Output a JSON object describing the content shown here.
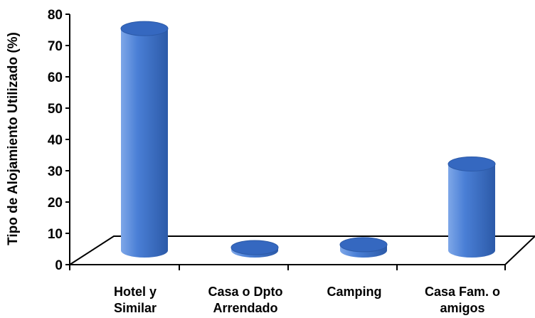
{
  "chart_data": {
    "type": "bar",
    "style": "3d-cylinder",
    "categories": [
      [
        "Hotel y",
        "Similar"
      ],
      [
        "Casa o Dpto",
        "Arrendado"
      ],
      [
        "Camping"
      ],
      [
        "Casa Fam. o",
        "amigos"
      ]
    ],
    "values": [
      77,
      1,
      2,
      30
    ],
    "ylabel": "Tipo de Alojamiento Utilizado (%)",
    "xlabel": "",
    "title": "",
    "ylim": [
      0,
      80
    ],
    "yticks": [
      0,
      10,
      20,
      30,
      40,
      50,
      60,
      70,
      80
    ],
    "grid": false,
    "legend": "none",
    "colors": {
      "bar_light": "#7ea7e8",
      "bar_mid": "#4a7fd6",
      "bar_dark": "#2c5aa8",
      "bar_top": "#3568c0",
      "axis": "#000000"
    }
  }
}
